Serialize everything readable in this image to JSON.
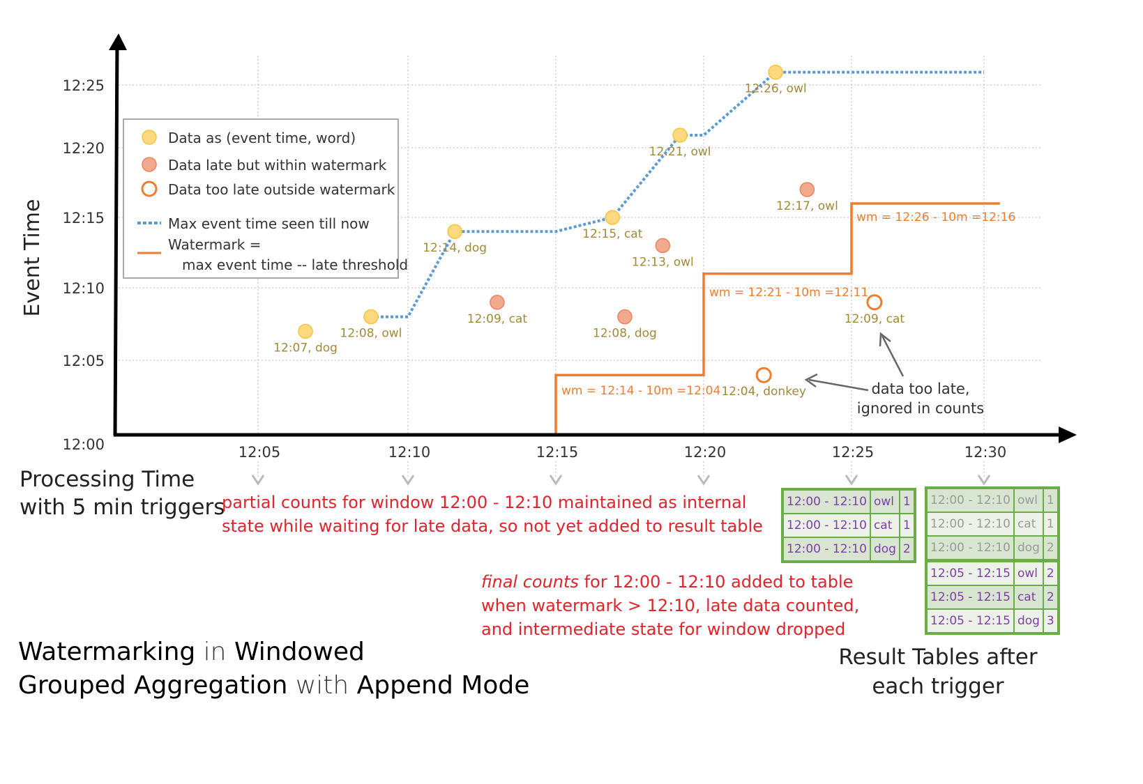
{
  "title": {
    "parts": [
      {
        "t": "Watermarking",
        "bold": true
      },
      {
        "t": " in ",
        "bold": false
      },
      {
        "t": "Windowed",
        "bold": true
      }
    ],
    "parts2": [
      {
        "t": "Grouped Aggregation",
        "bold": true
      },
      {
        "t": " with ",
        "bold": false
      },
      {
        "t": "Append Mode",
        "bold": true
      }
    ]
  },
  "axes": {
    "y_label": "Event Time",
    "x_label_line1": "Processing Time",
    "x_label_line2": "with 5 min triggers",
    "y_ticks": [
      "12:00",
      "12:05",
      "12:10",
      "12:15",
      "12:20",
      "12:25"
    ],
    "x_ticks": [
      "12:05",
      "12:10",
      "12:15",
      "12:20",
      "12:25",
      "12:30"
    ]
  },
  "legend": {
    "on_time": "Data as (event time, word)",
    "late": "Data late but within watermark",
    "too_late": "Data too late outside watermark",
    "max_line": "Max event time seen till now",
    "wm_line1": "Watermark =",
    "wm_line2": "max event time -- late threshold"
  },
  "colors": {
    "on_time_fill": "#ffd97f",
    "on_time_stroke": "#f6c343",
    "late_fill": "#f2a98e",
    "late_stroke": "#e8855c",
    "too_late": "#ed7d31",
    "max_line": "#5b9bd5",
    "watermark": "#ed7d31",
    "note": "#e0242b",
    "point_label": "#a08a3a",
    "table_border": "#6aac47",
    "table_text": "#7d3fa6"
  },
  "chart_data": {
    "type": "scatter",
    "xlabel": "Processing Time",
    "ylabel": "Event Time",
    "points": [
      {
        "proc": "12:06:35",
        "event": "12:07",
        "label": "12:07, dog",
        "kind": "on_time"
      },
      {
        "proc": "12:08:46",
        "event": "12:08",
        "label": "12:08, owl",
        "kind": "on_time"
      },
      {
        "proc": "12:11:35",
        "event": "12:14",
        "label": "12:14, dog",
        "kind": "on_time"
      },
      {
        "proc": "12:13:01",
        "event": "12:09",
        "label": "12:09, cat",
        "kind": "late"
      },
      {
        "proc": "12:16:55",
        "event": "12:15",
        "label": "12:15, cat",
        "kind": "on_time"
      },
      {
        "proc": "12:17:20",
        "event": "12:08",
        "label": "12:08, dog",
        "kind": "late"
      },
      {
        "proc": "12:18:37",
        "event": "12:13",
        "label": "12:13, owl",
        "kind": "late"
      },
      {
        "proc": "12:19:12",
        "event": "12:21",
        "label": "12:21, owl",
        "kind": "on_time"
      },
      {
        "proc": "12:22:02",
        "event": "12:04",
        "label": "12:04, donkey",
        "kind": "too_late"
      },
      {
        "proc": "12:22:26",
        "event": "12:26",
        "label": "12:26, owl",
        "kind": "on_time"
      },
      {
        "proc": "12:23:30",
        "event": "12:17",
        "label": "12:17, owl",
        "kind": "late"
      },
      {
        "proc": "12:25:52",
        "event": "12:09",
        "label": "12:09, cat",
        "kind": "too_late"
      }
    ],
    "max_event_line": [
      [
        "12:08:46",
        "12:08"
      ],
      [
        "12:10",
        "12:08"
      ],
      [
        "12:11:35",
        "12:14"
      ],
      [
        "12:15",
        "12:14"
      ],
      [
        "12:16:55",
        "12:15"
      ],
      [
        "12:19:12",
        "12:21"
      ],
      [
        "12:20",
        "12:21"
      ],
      [
        "12:22:26",
        "12:26"
      ],
      [
        "12:30",
        "12:26"
      ]
    ],
    "watermark_line": [
      [
        "12:15",
        "12:00"
      ],
      [
        "12:15",
        "12:04"
      ],
      [
        "12:20",
        "12:04"
      ],
      [
        "12:20",
        "12:11"
      ],
      [
        "12:25",
        "12:11"
      ],
      [
        "12:25",
        "12:16"
      ],
      [
        "12:30:36",
        "12:16"
      ]
    ],
    "watermark_labels": [
      "wm = 12:14 - 10m =12:04",
      "wm = 12:21 - 10m =12:11",
      "wm = 12:26 - 10m =12:16"
    ]
  },
  "annotations": {
    "too_late": [
      "data too late,",
      "ignored in counts"
    ],
    "partial": [
      "partial counts for window 12:00 - 12:10 maintained as internal",
      "state while waiting for late data, so not yet added  to result table"
    ],
    "final_em": "final counts",
    "final_rest": " for 12:00 - 12:10 added to table",
    "final_2": "when watermark > 12:10, late data counted,",
    "final_3": "and intermediate state for window dropped",
    "result_caption": [
      "Result Tables after",
      "each trigger"
    ]
  },
  "tables": [
    {
      "rows": [
        [
          "12:00 - 12:10",
          "owl",
          "1"
        ],
        [
          "12:00 - 12:10",
          "cat",
          "1"
        ],
        [
          "12:00 - 12:10",
          "dog",
          "2"
        ]
      ],
      "old": [
        false,
        false,
        false
      ]
    },
    {
      "rows": [
        [
          "12:00 - 12:10",
          "owl",
          "1"
        ],
        [
          "12:00 - 12:10",
          "cat",
          "1"
        ],
        [
          "12:00 - 12:10",
          "dog",
          "2"
        ],
        [
          "12:05 - 12:15",
          "owl",
          "2"
        ],
        [
          "12:05 - 12:15",
          "cat",
          "2"
        ],
        [
          "12:05 - 12:15",
          "dog",
          "3"
        ]
      ],
      "old": [
        true,
        true,
        true,
        false,
        false,
        false
      ]
    }
  ]
}
